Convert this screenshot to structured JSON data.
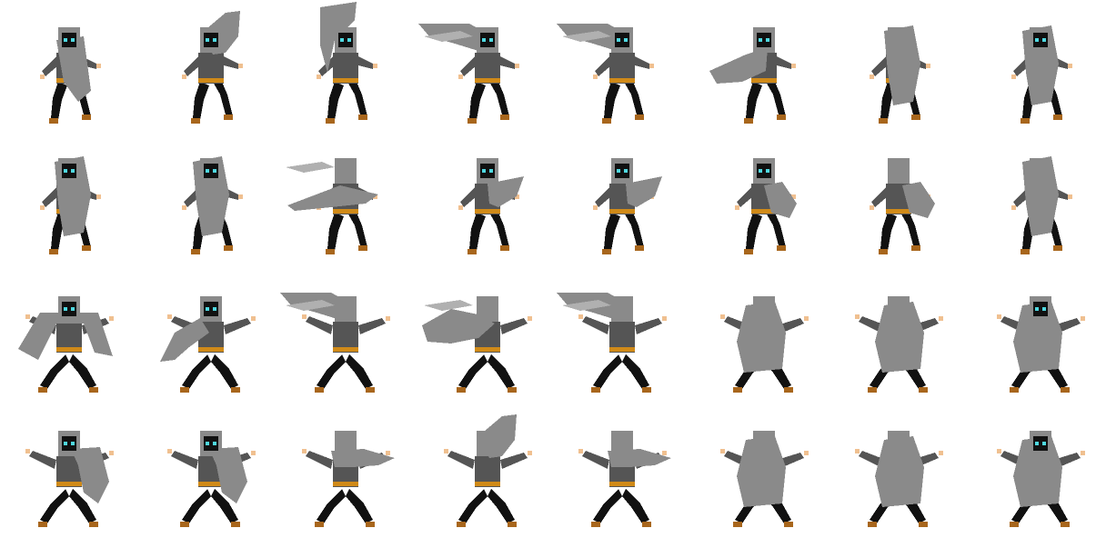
{
  "sprite_sheet": {
    "colors": {
      "background": "#ffffff",
      "outfit_dark": "#111111",
      "shirt": "#555555",
      "cloak": "#8a8a8a",
      "cloak_light": "#b0b0b0",
      "belt": "#d08a18",
      "boots": "#a8661c",
      "skin": "#f0c090",
      "eyes": "#4fd8e0"
    },
    "rows": [
      {
        "animation": "cloak-whirl",
        "frames": [
          {
            "cloak": "hood-only",
            "facing": "front"
          },
          {
            "cloak": "up-right",
            "facing": "front"
          },
          {
            "cloak": "high",
            "facing": "front"
          },
          {
            "cloak": "flat-left",
            "facing": "front"
          },
          {
            "cloak": "flat-left",
            "facing": "front"
          },
          {
            "cloak": "left-low",
            "facing": "front"
          },
          {
            "cloak": "wrap",
            "facing": "back"
          },
          {
            "cloak": "wrap",
            "facing": "front"
          }
        ]
      },
      {
        "animation": "leap-spin",
        "frames": [
          {
            "cloak": "wrap",
            "facing": "front"
          },
          {
            "cloak": "wrap",
            "facing": "front"
          },
          {
            "cloak": "flat-both",
            "facing": "back"
          },
          {
            "cloak": "right-flow",
            "facing": "front"
          },
          {
            "cloak": "right-flow",
            "facing": "front"
          },
          {
            "cloak": "right-low",
            "facing": "front"
          },
          {
            "cloak": "right-low",
            "facing": "back"
          },
          {
            "cloak": "wrap",
            "facing": "back"
          }
        ]
      },
      {
        "animation": "wide-stance-cast",
        "frames": [
          {
            "cloak": "cape-wide",
            "facing": "front"
          },
          {
            "cloak": "cape-left",
            "facing": "front"
          },
          {
            "cloak": "flat-left",
            "facing": "back"
          },
          {
            "cloak": "high-left",
            "facing": "back"
          },
          {
            "cloak": "flat-left",
            "facing": "back"
          },
          {
            "cloak": "robe",
            "facing": "back"
          },
          {
            "cloak": "robe",
            "facing": "back"
          },
          {
            "cloak": "robe",
            "facing": "front"
          }
        ]
      },
      {
        "animation": "wide-stance-turn",
        "frames": [
          {
            "cloak": "cape-right",
            "facing": "front"
          },
          {
            "cloak": "cape-right",
            "facing": "front"
          },
          {
            "cloak": "flat-right",
            "facing": "back"
          },
          {
            "cloak": "up-right",
            "facing": "back"
          },
          {
            "cloak": "flat-right",
            "facing": "back"
          },
          {
            "cloak": "robe",
            "facing": "back"
          },
          {
            "cloak": "robe",
            "facing": "back"
          },
          {
            "cloak": "robe",
            "facing": "front"
          }
        ]
      }
    ]
  }
}
